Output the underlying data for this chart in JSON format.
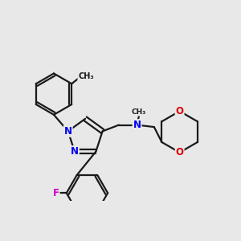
{
  "background_color": "#e8e8e8",
  "bond_color": "#1a1a1a",
  "bond_width": 1.6,
  "atom_colors": {
    "N": "#0000ee",
    "O": "#dd0000",
    "F": "#cc00cc",
    "C": "#1a1a1a"
  },
  "bg": "#e8e8e8"
}
